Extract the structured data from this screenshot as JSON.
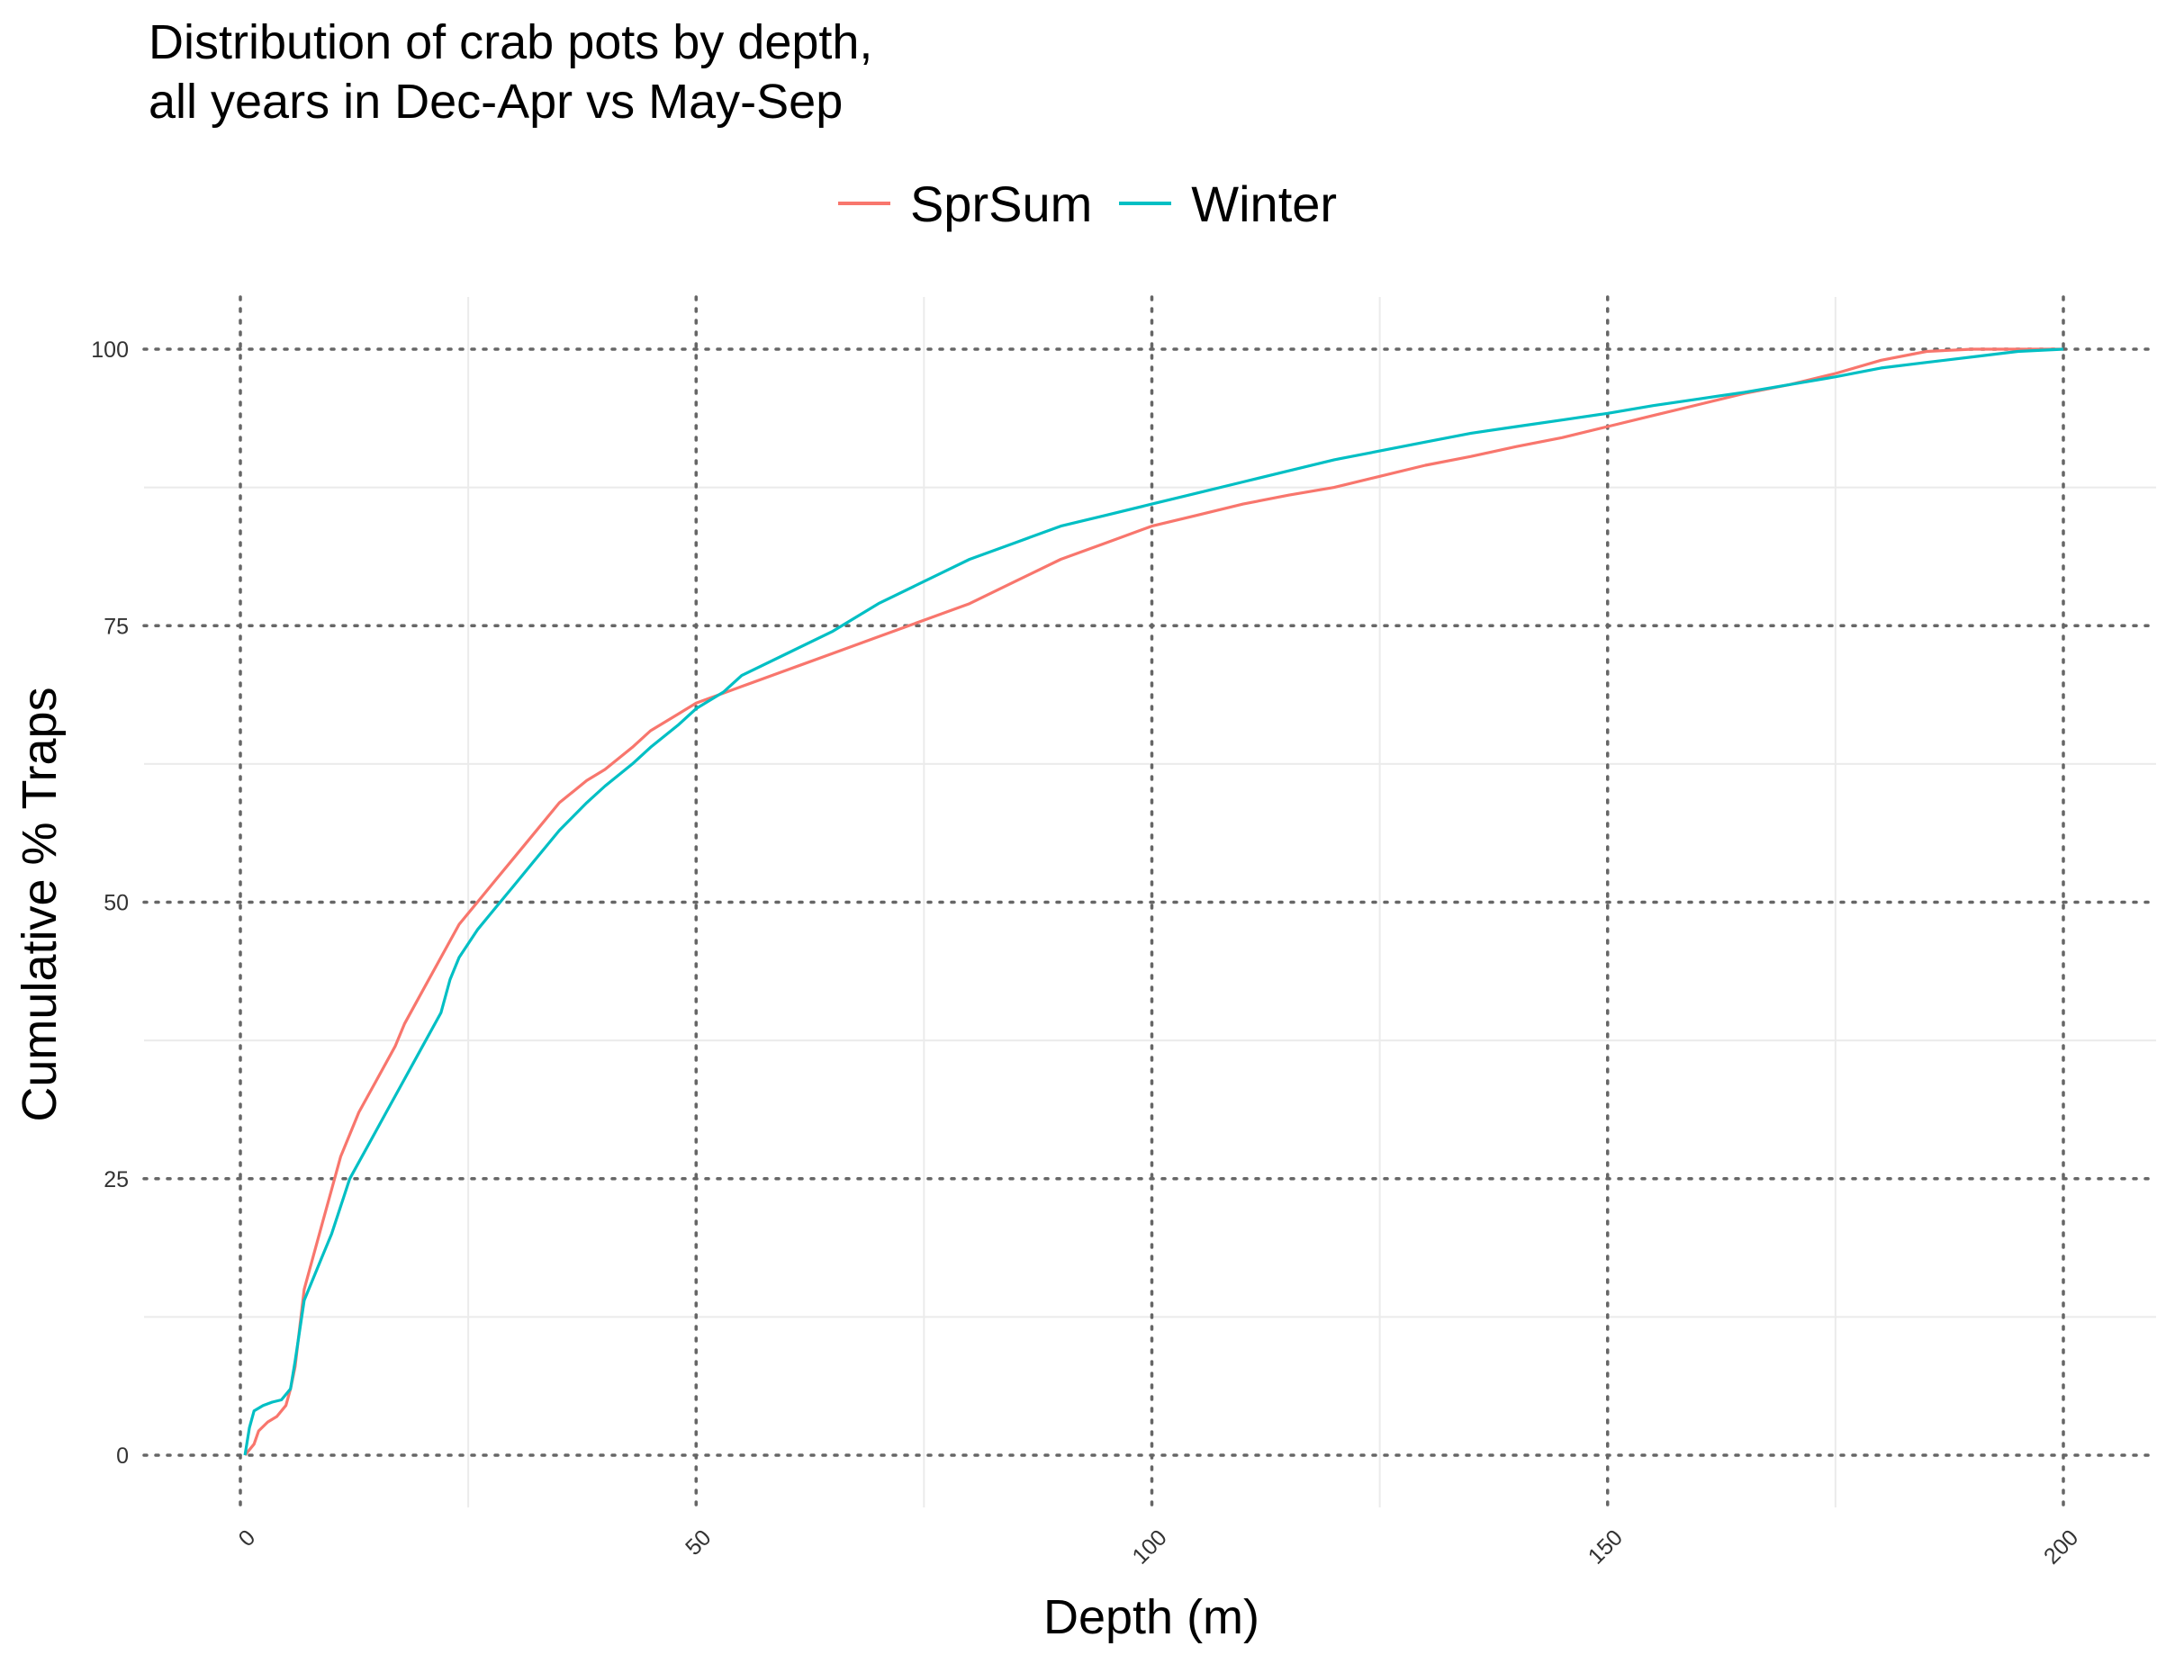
{
  "chart_data": {
    "type": "line",
    "title": [
      "Distribution of crab pots by depth,",
      "all years in Dec-Apr vs May-Sep"
    ],
    "xlabel": "Depth (m)",
    "ylabel": "Cumulative % Traps",
    "xlim": [
      0,
      200
    ],
    "ylim": [
      0,
      100
    ],
    "x_ticks": [
      0,
      50,
      100,
      150,
      200
    ],
    "y_ticks": [
      0,
      25,
      50,
      75,
      100
    ],
    "x_tick_labels": [
      "0",
      "50",
      "100",
      "150",
      "200"
    ],
    "y_tick_labels": [
      "0",
      "25",
      "50",
      "75",
      "100"
    ],
    "grid": true,
    "legend_position": "top",
    "series": [
      {
        "name": "SprSum",
        "color": "#F8766D",
        "points": [
          [
            0.5,
            0
          ],
          [
            1.5,
            1
          ],
          [
            2,
            2.2
          ],
          [
            3,
            3
          ],
          [
            4,
            3.5
          ],
          [
            5,
            4.5
          ],
          [
            5.5,
            6
          ],
          [
            6,
            8
          ],
          [
            7,
            15
          ],
          [
            8,
            18
          ],
          [
            9,
            21
          ],
          [
            10,
            24
          ],
          [
            11,
            27
          ],
          [
            12,
            29
          ],
          [
            13,
            31
          ],
          [
            15,
            34
          ],
          [
            17,
            37
          ],
          [
            18,
            39
          ],
          [
            20,
            42
          ],
          [
            22,
            45
          ],
          [
            24,
            48
          ],
          [
            26,
            50
          ],
          [
            28,
            52
          ],
          [
            30,
            54
          ],
          [
            32,
            56
          ],
          [
            35,
            59
          ],
          [
            38,
            61
          ],
          [
            40,
            62
          ],
          [
            43,
            64
          ],
          [
            45,
            65.5
          ],
          [
            48,
            67
          ],
          [
            50,
            68
          ],
          [
            55,
            69.5
          ],
          [
            60,
            71
          ],
          [
            65,
            72.5
          ],
          [
            70,
            74
          ],
          [
            75,
            75.5
          ],
          [
            80,
            77
          ],
          [
            85,
            79
          ],
          [
            90,
            81
          ],
          [
            95,
            82.5
          ],
          [
            100,
            84
          ],
          [
            105,
            85
          ],
          [
            110,
            86
          ],
          [
            115,
            86.8
          ],
          [
            120,
            87.5
          ],
          [
            125,
            88.5
          ],
          [
            130,
            89.5
          ],
          [
            135,
            90.3
          ],
          [
            140,
            91.2
          ],
          [
            145,
            92
          ],
          [
            150,
            93
          ],
          [
            155,
            94
          ],
          [
            160,
            95
          ],
          [
            165,
            96
          ],
          [
            170,
            96.8
          ],
          [
            175,
            97.8
          ],
          [
            180,
            99
          ],
          [
            185,
            99.8
          ],
          [
            190,
            100
          ],
          [
            200,
            100
          ]
        ]
      },
      {
        "name": "Winter",
        "color": "#00BFC4",
        "points": [
          [
            0.5,
            0
          ],
          [
            1,
            2.5
          ],
          [
            1.5,
            4
          ],
          [
            2.5,
            4.5
          ],
          [
            3.5,
            4.8
          ],
          [
            4.5,
            5
          ],
          [
            5.5,
            6
          ],
          [
            6,
            8.5
          ],
          [
            7,
            14
          ],
          [
            8,
            16
          ],
          [
            9,
            18
          ],
          [
            10,
            20
          ],
          [
            11,
            22.5
          ],
          [
            12,
            25
          ],
          [
            14,
            28
          ],
          [
            16,
            31
          ],
          [
            18,
            34
          ],
          [
            20,
            37
          ],
          [
            22,
            40
          ],
          [
            23,
            43
          ],
          [
            24,
            45
          ],
          [
            26,
            47.5
          ],
          [
            28,
            49.5
          ],
          [
            30,
            51.5
          ],
          [
            32,
            53.5
          ],
          [
            35,
            56.5
          ],
          [
            38,
            59
          ],
          [
            40,
            60.5
          ],
          [
            43,
            62.5
          ],
          [
            45,
            64
          ],
          [
            48,
            66
          ],
          [
            50,
            67.5
          ],
          [
            53,
            69
          ],
          [
            55,
            70.5
          ],
          [
            60,
            72.5
          ],
          [
            65,
            74.5
          ],
          [
            70,
            77
          ],
          [
            75,
            79
          ],
          [
            80,
            81
          ],
          [
            85,
            82.5
          ],
          [
            90,
            84
          ],
          [
            95,
            85
          ],
          [
            100,
            86
          ],
          [
            105,
            87
          ],
          [
            110,
            88
          ],
          [
            115,
            89
          ],
          [
            120,
            90
          ],
          [
            125,
            90.8
          ],
          [
            130,
            91.6
          ],
          [
            135,
            92.4
          ],
          [
            140,
            93
          ],
          [
            145,
            93.6
          ],
          [
            150,
            94.2
          ],
          [
            155,
            94.9
          ],
          [
            160,
            95.5
          ],
          [
            165,
            96.1
          ],
          [
            170,
            96.8
          ],
          [
            175,
            97.5
          ],
          [
            180,
            98.3
          ],
          [
            185,
            98.8
          ],
          [
            190,
            99.3
          ],
          [
            195,
            99.8
          ],
          [
            200,
            100
          ]
        ]
      }
    ]
  }
}
